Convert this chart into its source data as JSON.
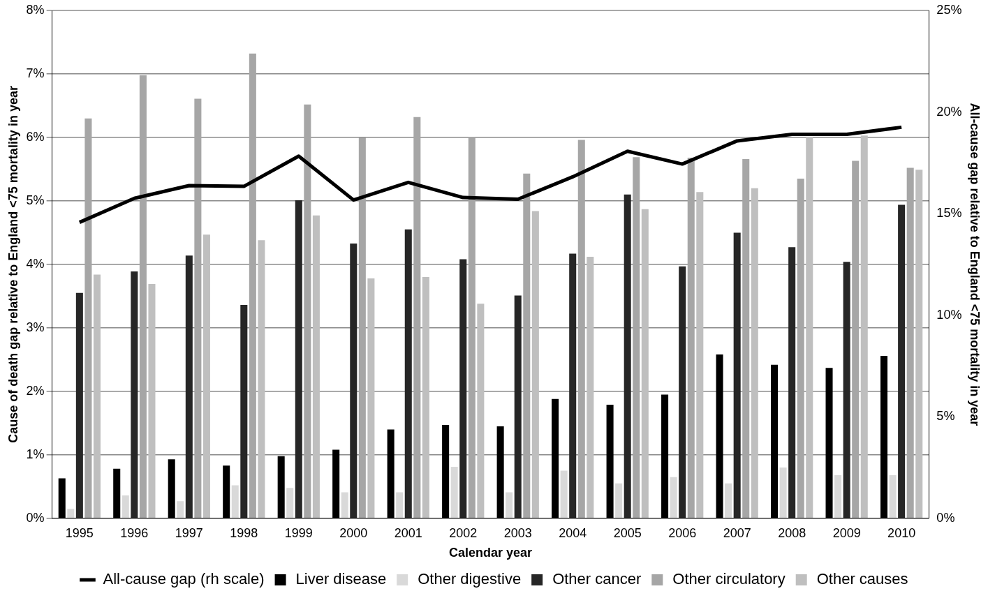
{
  "chart_data": {
    "type": "bar",
    "xlabel": "Calendar year",
    "ylabel": "Cause of death gap relative to England <75 mortality in year",
    "y2label": "All-cause gap relative to England <75 mortality in year",
    "categories": [
      "1995",
      "1996",
      "1997",
      "1998",
      "1999",
      "2000",
      "2001",
      "2002",
      "2003",
      "2004",
      "2005",
      "2006",
      "2007",
      "2008",
      "2009",
      "2010"
    ],
    "series": [
      {
        "name": "Liver disease",
        "color": "#000000",
        "values": [
          0.63,
          0.78,
          0.93,
          0.83,
          0.98,
          1.08,
          1.4,
          1.47,
          1.45,
          1.88,
          1.79,
          1.95,
          2.58,
          2.42,
          2.37,
          2.56
        ]
      },
      {
        "name": "Other digestive",
        "color": "#d9d9d9",
        "values": [
          0.15,
          0.36,
          0.27,
          0.52,
          0.48,
          0.41,
          0.41,
          0.81,
          0.41,
          0.75,
          0.55,
          0.65,
          0.55,
          0.8,
          0.68,
          0.68
        ]
      },
      {
        "name": "Other cancer",
        "color": "#262626",
        "values": [
          3.55,
          3.89,
          4.14,
          3.36,
          5.01,
          4.33,
          4.55,
          4.08,
          3.51,
          4.17,
          5.1,
          3.97,
          4.5,
          4.27,
          4.04,
          4.94
        ]
      },
      {
        "name": "Other circulatory",
        "color": "#a6a6a6",
        "values": [
          6.3,
          6.98,
          6.61,
          7.32,
          6.52,
          6.0,
          6.32,
          6.01,
          5.43,
          5.96,
          5.69,
          5.68,
          5.66,
          5.35,
          5.63,
          5.52
        ]
      },
      {
        "name": "Other causes",
        "color": "#bfbfbf",
        "values": [
          3.84,
          3.69,
          4.47,
          4.38,
          4.77,
          3.78,
          3.8,
          3.38,
          4.84,
          4.12,
          4.87,
          5.14,
          5.2,
          6.01,
          6.03,
          5.49
        ]
      },
      {
        "name": "All-cause gap (rh scale)",
        "type": "line",
        "axis": "y2",
        "color": "#000000",
        "values": [
          14.57,
          15.75,
          16.38,
          16.34,
          17.83,
          15.67,
          16.54,
          15.79,
          15.71,
          16.81,
          18.07,
          17.44,
          18.58,
          18.9,
          18.9,
          19.25
        ]
      }
    ],
    "ylim": [
      0,
      8
    ],
    "yticks": [
      {
        "value": 0,
        "label": "0%"
      },
      {
        "value": 1,
        "label": "1%"
      },
      {
        "value": 2,
        "label": "2%"
      },
      {
        "value": 3,
        "label": "3%"
      },
      {
        "value": 4,
        "label": "4%"
      },
      {
        "value": 5,
        "label": "5%"
      },
      {
        "value": 6,
        "label": "6%"
      },
      {
        "value": 7,
        "label": "7%"
      },
      {
        "value": 8,
        "label": "8%"
      }
    ],
    "y2lim": [
      0,
      25
    ],
    "y2ticks": [
      {
        "value": 0,
        "label": "0%"
      },
      {
        "value": 5,
        "label": "5%"
      },
      {
        "value": 10,
        "label": "10%"
      },
      {
        "value": 15,
        "label": "15%"
      },
      {
        "value": 20,
        "label": "20%"
      },
      {
        "value": 25,
        "label": "25%"
      }
    ],
    "grid": "y",
    "legend": "bottom",
    "marker": "none",
    "line_style": "solid"
  }
}
